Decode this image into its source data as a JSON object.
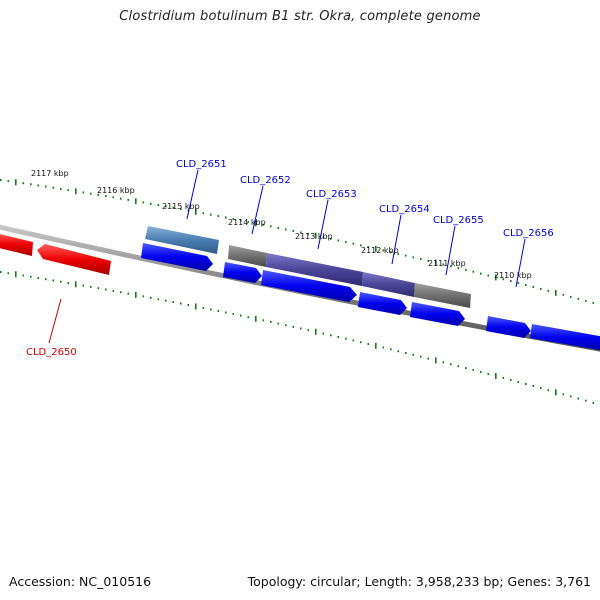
{
  "title": "Clostridium botulinum B1 str. Okra, complete genome",
  "footer": {
    "accession": "Accession: NC_010516",
    "summary": "Topology: circular; Length: 3,958,233 bp; Genes: 3,761"
  },
  "colors": {
    "tick": "#1a7a1a",
    "backbone": "#888888",
    "gene_plus": "#0000ee",
    "gene_highlight": "#ee0000",
    "label_blue": "#0000cc",
    "label_red": "#cc0000"
  },
  "kbp_labels": [
    "2117 kbp",
    "2116 kbp",
    "2115 kbp",
    "2114 kbp",
    "2113 kbp",
    "2112 kbp",
    "2111 kbp",
    "2110 kbp"
  ],
  "genes": [
    {
      "label": "CLD_2650",
      "color": "red"
    },
    {
      "label": "CLD_2651",
      "color": "blue"
    },
    {
      "label": "CLD_2652",
      "color": "blue"
    },
    {
      "label": "CLD_2653",
      "color": "blue"
    },
    {
      "label": "CLD_2654",
      "color": "blue"
    },
    {
      "label": "CLD_2655",
      "color": "blue"
    },
    {
      "label": "CLD_2656",
      "color": "blue"
    }
  ]
}
